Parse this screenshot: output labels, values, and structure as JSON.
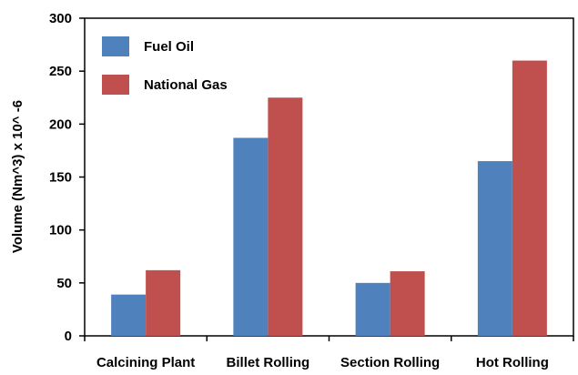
{
  "chart_data": {
    "type": "bar",
    "title": "",
    "xlabel": "",
    "ylabel": "Volume  (Nm^3) x 10^ -6",
    "ylim": [
      0,
      300
    ],
    "yticks": [
      0,
      50,
      100,
      150,
      200,
      250,
      300
    ],
    "grid": false,
    "legend_position": "top-left",
    "categories": [
      "Calcining Plant",
      "Billet Rolling",
      "Section Rolling",
      "Hot Rolling"
    ],
    "series": [
      {
        "name": "Fuel Oil",
        "color": "#4F81BD",
        "values": [
          39,
          187,
          50,
          165
        ]
      },
      {
        "name": "National Gas",
        "color": "#C0504D",
        "values": [
          62,
          225,
          61,
          260
        ]
      }
    ]
  }
}
